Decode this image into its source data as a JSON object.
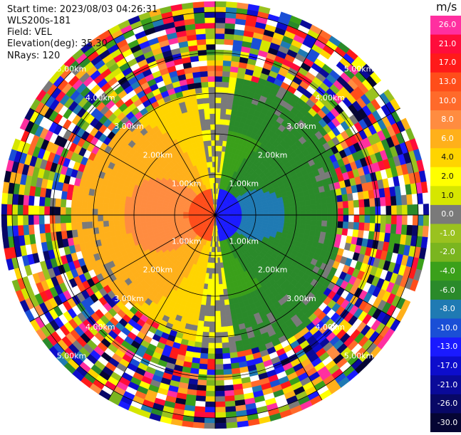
{
  "header": {
    "start_time": "Start time: 2023/08/03 04:26:31",
    "instrument": "WLS200s-181",
    "field": "Field: VEL",
    "elevation": "Elevation(deg): 35.30",
    "nrays": "NRays: 120"
  },
  "colorbar": {
    "title": "m/s",
    "levels": [
      {
        "label": "26.0",
        "color": "#ff2fa0"
      },
      {
        "label": "21.0",
        "color": "#ff0d3b"
      },
      {
        "label": "17.0",
        "color": "#ff1a1a"
      },
      {
        "label": "13.0",
        "color": "#ff4d1a"
      },
      {
        "label": "10.0",
        "color": "#ff6a2a"
      },
      {
        "label": "8.0",
        "color": "#ff8c40"
      },
      {
        "label": "6.0",
        "color": "#ffb01a"
      },
      {
        "label": "4.0",
        "color": "#ffd400"
      },
      {
        "label": "2.0",
        "color": "#ffff00"
      },
      {
        "label": "1.0",
        "color": "#d6e600"
      },
      {
        "label": "0.0",
        "color": "#7a7a7a"
      },
      {
        "label": "-1.0",
        "color": "#9ac21f"
      },
      {
        "label": "-2.0",
        "color": "#7ab51f"
      },
      {
        "label": "-4.0",
        "color": "#3aa01a"
      },
      {
        "label": "-6.0",
        "color": "#2a8a2a"
      },
      {
        "label": "-8.0",
        "color": "#1f7ab3"
      },
      {
        "label": "-10.0",
        "color": "#1a4fd6"
      },
      {
        "label": "-13.0",
        "color": "#1a1aff"
      },
      {
        "label": "-17.0",
        "color": "#0d0dcc"
      },
      {
        "label": "-21.0",
        "color": "#0a0a99"
      },
      {
        "label": "-26.0",
        "color": "#080866"
      },
      {
        "label": "-30.0",
        "color": "#050533"
      }
    ]
  },
  "range_rings": {
    "labels": [
      "1.00km",
      "2.00km",
      "3.00km",
      "4.00km",
      "5.00km"
    ],
    "km": [
      1,
      2,
      3,
      4,
      5
    ]
  },
  "colors": {
    "ring_line": "#000000",
    "ring_label": "#ffffff"
  }
}
